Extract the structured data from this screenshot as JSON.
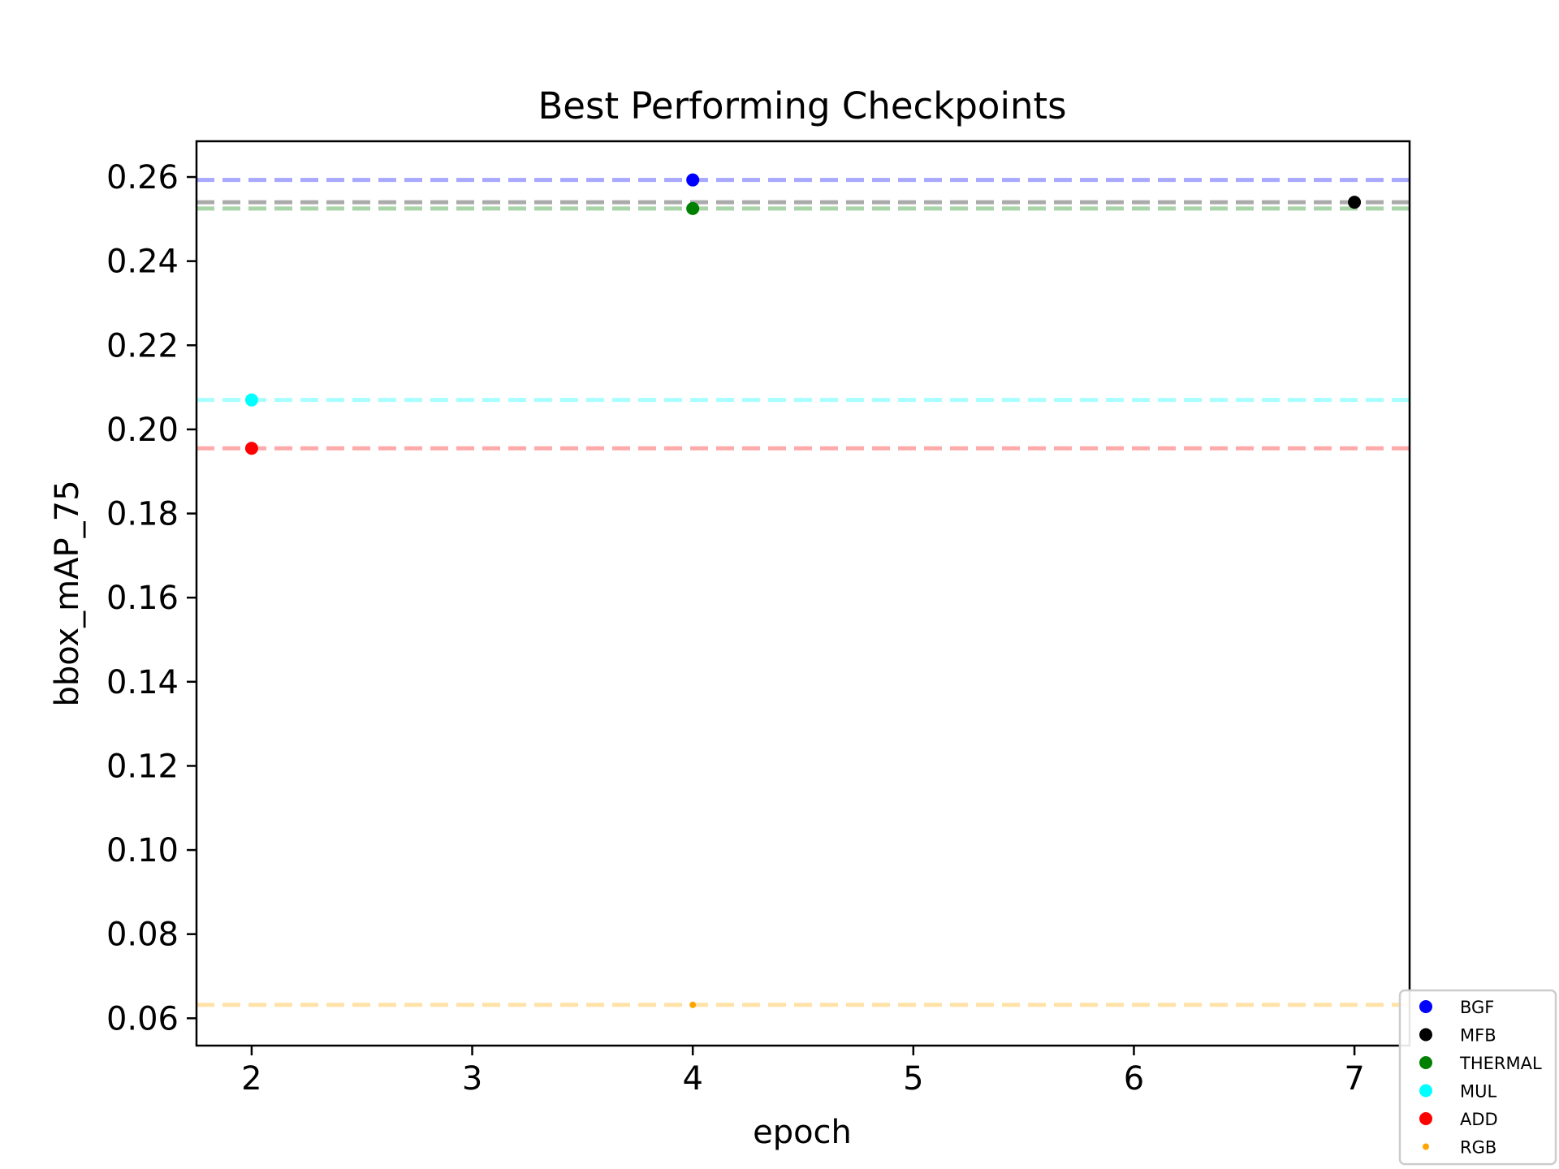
{
  "chart_data": {
    "type": "scatter",
    "title": "Best Performing Checkpoints",
    "xlabel": "epoch",
    "ylabel": "bbox_mAP_75",
    "xlim": [
      1.75,
      7.25
    ],
    "ylim": [
      0.0535,
      0.2685
    ],
    "x_ticks": [
      2,
      3,
      4,
      5,
      6,
      7
    ],
    "y_ticks": [
      0.06,
      0.08,
      0.1,
      0.12,
      0.14,
      0.16,
      0.18,
      0.2,
      0.22,
      0.24,
      0.26
    ],
    "x_tick_labels": [
      "2",
      "3",
      "4",
      "5",
      "6",
      "7"
    ],
    "y_tick_labels": [
      "0.06",
      "0.08",
      "0.10",
      "0.12",
      "0.14",
      "0.16",
      "0.18",
      "0.20",
      "0.22",
      "0.24",
      "0.26"
    ],
    "grid": false,
    "legend_position": "bottom-right",
    "series": [
      {
        "name": "BGF",
        "x": 4,
        "y": 0.2593,
        "color": "#0000ff",
        "line_color": "#a8a8ff",
        "size": "normal"
      },
      {
        "name": "MFB",
        "x": 7,
        "y": 0.254,
        "color": "#000000",
        "line_color": "#aaaaaa",
        "size": "normal"
      },
      {
        "name": "THERMAL",
        "x": 4,
        "y": 0.2525,
        "color": "#008000",
        "line_color": "#a8d4a8",
        "size": "normal"
      },
      {
        "name": "MUL",
        "x": 2,
        "y": 0.207,
        "color": "#00ffff",
        "line_color": "#a8ffff",
        "size": "normal"
      },
      {
        "name": "ADD",
        "x": 2,
        "y": 0.1955,
        "color": "#ff0000",
        "line_color": "#ffaaaa",
        "size": "normal"
      },
      {
        "name": "RGB",
        "x": 4,
        "y": 0.0632,
        "color": "#ffa500",
        "line_color": "#ffe2a8",
        "size": "small"
      }
    ]
  }
}
